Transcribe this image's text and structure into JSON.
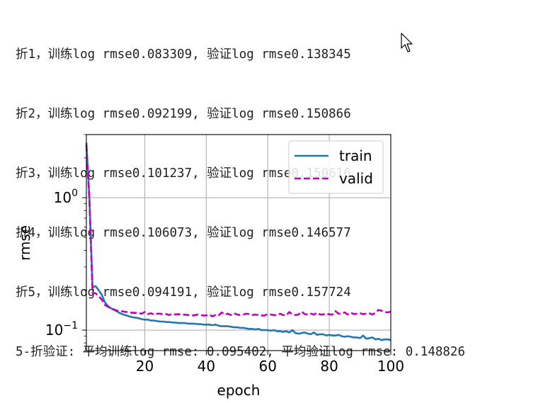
{
  "log_lines": [
    "折1，训练log rmse0.083309, 验证log rmse0.138345",
    "折2，训练log rmse0.092199, 验证log rmse0.150866",
    "折3，训练log rmse0.101237, 验证log rmse0.150616",
    "折4，训练log rmse0.106073, 验证log rmse0.146577",
    "折5，训练log rmse0.094191, 验证log rmse0.157724",
    "5-折验证: 平均训练log rmse: 0.095402, 平均验证log rmse: 0.148826"
  ],
  "chart_data": {
    "type": "line",
    "xlabel": "epoch",
    "ylabel": "rmse",
    "xlim": [
      1,
      100
    ],
    "ylim": [
      0.07,
      3.0
    ],
    "yscale": "log",
    "xticks": [
      20,
      40,
      60,
      80,
      100
    ],
    "yticks": [
      {
        "value": 1,
        "label_base": "10",
        "label_exp": "0"
      },
      {
        "value": 0.1,
        "label_base": "10",
        "label_exp": "−1"
      }
    ],
    "grid": true,
    "legend_position": "top-right",
    "series": [
      {
        "name": "train",
        "color": "#1f77b4",
        "style": "solid",
        "x": [
          1,
          2,
          3,
          4,
          5,
          6,
          7,
          8,
          9,
          10,
          11,
          12,
          13,
          14,
          15,
          16,
          17,
          18,
          19,
          20,
          21,
          22,
          23,
          24,
          25,
          26,
          27,
          28,
          29,
          30,
          31,
          32,
          33,
          34,
          35,
          36,
          37,
          38,
          39,
          40,
          41,
          42,
          43,
          44,
          45,
          46,
          47,
          48,
          49,
          50,
          51,
          52,
          53,
          54,
          55,
          56,
          57,
          58,
          59,
          60,
          61,
          62,
          63,
          64,
          65,
          66,
          67,
          68,
          69,
          70,
          71,
          72,
          73,
          74,
          75,
          76,
          77,
          78,
          79,
          80,
          81,
          82,
          83,
          84,
          85,
          86,
          87,
          88,
          89,
          90,
          91,
          92,
          93,
          94,
          95,
          96,
          97,
          98,
          99,
          100
        ],
        "values": [
          2.6,
          1.0,
          0.21,
          0.215,
          0.2,
          0.185,
          0.162,
          0.152,
          0.146,
          0.142,
          0.138,
          0.134,
          0.131,
          0.129,
          0.127,
          0.125,
          0.124,
          0.123,
          0.121,
          0.12,
          0.12,
          0.118,
          0.118,
          0.117,
          0.116,
          0.116,
          0.115,
          0.115,
          0.114,
          0.114,
          0.113,
          0.113,
          0.113,
          0.112,
          0.112,
          0.112,
          0.111,
          0.111,
          0.11,
          0.11,
          0.11,
          0.109,
          0.11,
          0.108,
          0.107,
          0.107,
          0.107,
          0.106,
          0.105,
          0.105,
          0.104,
          0.104,
          0.103,
          0.102,
          0.102,
          0.101,
          0.102,
          0.1,
          0.1,
          0.1,
          0.099,
          0.1,
          0.098,
          0.098,
          0.097,
          0.098,
          0.096,
          0.1,
          0.095,
          0.094,
          0.095,
          0.096,
          0.094,
          0.093,
          0.096,
          0.092,
          0.093,
          0.093,
          0.091,
          0.092,
          0.091,
          0.091,
          0.092,
          0.09,
          0.089,
          0.09,
          0.089,
          0.088,
          0.088,
          0.087,
          0.091,
          0.086,
          0.087,
          0.088,
          0.085,
          0.086,
          0.084,
          0.085,
          0.085,
          0.084
        ]
      },
      {
        "name": "valid",
        "color": "#bf00bf",
        "style": "dashed",
        "x": [
          1,
          2,
          3,
          4,
          5,
          6,
          7,
          8,
          9,
          10,
          11,
          12,
          13,
          14,
          15,
          16,
          17,
          18,
          19,
          20,
          21,
          22,
          23,
          24,
          25,
          26,
          27,
          28,
          29,
          30,
          31,
          32,
          33,
          34,
          35,
          36,
          37,
          38,
          39,
          40,
          41,
          42,
          43,
          44,
          45,
          46,
          47,
          48,
          49,
          50,
          51,
          52,
          53,
          54,
          55,
          56,
          57,
          58,
          59,
          60,
          61,
          62,
          63,
          64,
          65,
          66,
          67,
          68,
          69,
          70,
          71,
          72,
          73,
          74,
          75,
          76,
          77,
          78,
          79,
          80,
          81,
          82,
          83,
          84,
          85,
          86,
          87,
          88,
          89,
          90,
          91,
          92,
          93,
          94,
          95,
          96,
          97,
          98,
          99,
          100
        ],
        "values": [
          2.5,
          0.95,
          0.19,
          0.19,
          0.18,
          0.17,
          0.155,
          0.15,
          0.146,
          0.143,
          0.14,
          0.14,
          0.138,
          0.137,
          0.136,
          0.135,
          0.135,
          0.134,
          0.133,
          0.137,
          0.132,
          0.134,
          0.131,
          0.133,
          0.133,
          0.131,
          0.132,
          0.13,
          0.133,
          0.131,
          0.132,
          0.13,
          0.131,
          0.13,
          0.13,
          0.129,
          0.131,
          0.13,
          0.129,
          0.129,
          0.131,
          0.127,
          0.13,
          0.129,
          0.136,
          0.131,
          0.133,
          0.13,
          0.134,
          0.131,
          0.13,
          0.131,
          0.133,
          0.132,
          0.13,
          0.131,
          0.13,
          0.129,
          0.129,
          0.132,
          0.131,
          0.13,
          0.129,
          0.133,
          0.13,
          0.129,
          0.137,
          0.131,
          0.13,
          0.131,
          0.138,
          0.132,
          0.131,
          0.133,
          0.131,
          0.135,
          0.131,
          0.131,
          0.134,
          0.131,
          0.131,
          0.139,
          0.133,
          0.134,
          0.136,
          0.131,
          0.135,
          0.132,
          0.133,
          0.134,
          0.132,
          0.133,
          0.134,
          0.131,
          0.135,
          0.142,
          0.14,
          0.137,
          0.136,
          0.138
        ]
      }
    ]
  }
}
